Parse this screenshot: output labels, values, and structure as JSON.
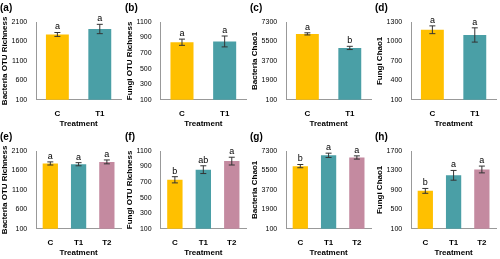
{
  "chart_data": [
    {
      "type": "bar",
      "title": "(a)",
      "x_label": "Treatment",
      "y_label": "Bacteria OTU Richness",
      "categories": [
        "C",
        "T1"
      ],
      "values": [
        1780,
        1920
      ],
      "errors": [
        50,
        120
      ],
      "letters": [
        "a",
        "a"
      ],
      "colors": [
        "#ffc000",
        "#4a9fa6"
      ],
      "ylim": [
        100,
        2100
      ],
      "yticks": [
        100,
        600,
        1100,
        1600,
        2100
      ],
      "grid": false
    },
    {
      "type": "bar",
      "title": "(b)",
      "x_label": "Treatment",
      "y_label": "Fungi OTU Richness",
      "categories": [
        "C",
        "T1"
      ],
      "values": [
        840,
        850
      ],
      "errors": [
        40,
        70
      ],
      "letters": [
        "a",
        "a"
      ],
      "colors": [
        "#ffc000",
        "#4a9fa6"
      ],
      "ylim": [
        100,
        1100
      ],
      "yticks": [
        100,
        300,
        500,
        700,
        900,
        1100
      ],
      "grid": false
    },
    {
      "type": "bar",
      "title": "(c)",
      "x_label": "Treatment",
      "y_label": "Bacteria Chao1",
      "categories": [
        "C",
        "T1"
      ],
      "values": [
        6200,
        4900
      ],
      "errors": [
        100,
        150
      ],
      "letters": [
        "a",
        "b"
      ],
      "colors": [
        "#ffc000",
        "#4a9fa6"
      ],
      "ylim": [
        100,
        7300
      ],
      "yticks": [
        100,
        1900,
        3700,
        5500,
        7300
      ],
      "grid": false
    },
    {
      "type": "bar",
      "title": "(d)",
      "x_label": "Treatment",
      "y_label": "Fungi Chao1",
      "categories": [
        "C",
        "T1"
      ],
      "values": [
        1180,
        1100
      ],
      "errors": [
        60,
        110
      ],
      "letters": [
        "a",
        "a"
      ],
      "colors": [
        "#ffc000",
        "#4a9fa6"
      ],
      "ylim": [
        100,
        1300
      ],
      "yticks": [
        100,
        400,
        700,
        1000,
        1300
      ],
      "grid": false
    },
    {
      "type": "bar",
      "title": "(e)",
      "x_label": "Treatment",
      "y_label": "Bacteria OTU Richness",
      "categories": [
        "C",
        "T1",
        "T2"
      ],
      "values": [
        1780,
        1760,
        1820
      ],
      "errors": [
        40,
        40,
        50
      ],
      "letters": [
        "a",
        "a",
        "a"
      ],
      "colors": [
        "#ffc000",
        "#4a9fa6",
        "#c48aa0"
      ],
      "ylim": [
        100,
        2100
      ],
      "yticks": [
        100,
        600,
        1100,
        1600,
        2100
      ],
      "grid": false
    },
    {
      "type": "bar",
      "title": "(f)",
      "x_label": "Treatment",
      "y_label": "Fungi OTU Richness",
      "categories": [
        "C",
        "T1",
        "T2"
      ],
      "values": [
        730,
        860,
        970
      ],
      "errors": [
        40,
        50,
        50
      ],
      "letters": [
        "b",
        "ab",
        "a"
      ],
      "colors": [
        "#ffc000",
        "#4a9fa6",
        "#c48aa0"
      ],
      "ylim": [
        100,
        1100
      ],
      "yticks": [
        100,
        300,
        500,
        700,
        900,
        1100
      ],
      "grid": false
    },
    {
      "type": "bar",
      "title": "(g)",
      "x_label": "Treatment",
      "y_label": "Bacteria Chao1",
      "categories": [
        "C",
        "T1",
        "T2"
      ],
      "values": [
        5900,
        6900,
        6700
      ],
      "errors": [
        150,
        200,
        150
      ],
      "letters": [
        "b",
        "a",
        "a"
      ],
      "colors": [
        "#ffc000",
        "#4a9fa6",
        "#c48aa0"
      ],
      "ylim": [
        100,
        7300
      ],
      "yticks": [
        100,
        1900,
        3700,
        5500,
        7300
      ],
      "grid": false
    },
    {
      "type": "bar",
      "title": "(h)",
      "x_label": "Treatment",
      "y_label": "Fungi Chao1",
      "categories": [
        "C",
        "T1",
        "T2"
      ],
      "values": [
        880,
        1200,
        1320
      ],
      "errors": [
        50,
        100,
        70
      ],
      "letters": [
        "b",
        "a",
        "a"
      ],
      "colors": [
        "#ffc000",
        "#4a9fa6",
        "#c48aa0"
      ],
      "ylim": [
        100,
        1700
      ],
      "yticks": [
        100,
        500,
        900,
        1300,
        1700
      ],
      "grid": false
    }
  ]
}
